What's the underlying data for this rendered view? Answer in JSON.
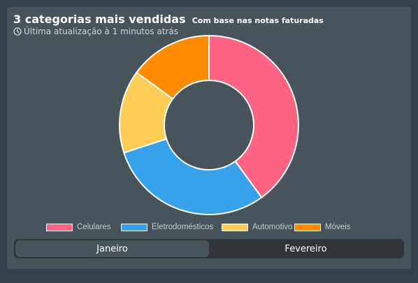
{
  "header": {
    "title": "3 categorias mais vendidas",
    "subtitle": "Com base nas notas faturadas",
    "updated": "Última atualização à 1 minutos atrás",
    "clock_icon": "clock-icon"
  },
  "chart_data": {
    "type": "doughnut",
    "categories": [
      "Celulares",
      "Eletrodomésticos",
      "Automotivo",
      "Móveis"
    ],
    "values": [
      40,
      30,
      15,
      15
    ],
    "colors": [
      "#ff6384",
      "#36a2eb",
      "#ffcd56",
      "#ff8c00"
    ],
    "legend": "bottom"
  },
  "tabs": [
    {
      "label": "Janeiro",
      "active": true
    },
    {
      "label": "Fevereiro",
      "active": false
    }
  ]
}
